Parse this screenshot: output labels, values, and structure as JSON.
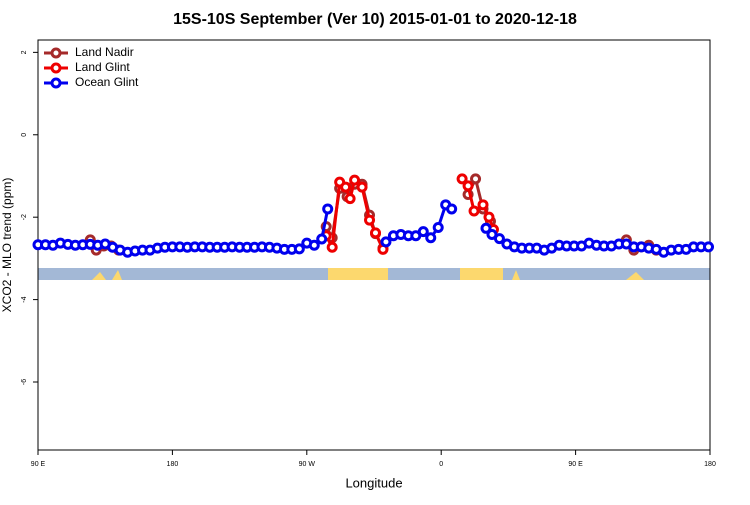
{
  "chart_data": {
    "type": "line",
    "title": "15S-10S September (Ver 10)   2015-01-01 to 2020-12-18",
    "xlabel": "Longitude",
    "ylabel": "XCO2 - MLO trend (ppm)",
    "xlim": [
      -270,
      180
    ],
    "ylim": [
      -7.65,
      2.3
    ],
    "xticks": [
      {
        "value": -270,
        "label": "90 E"
      },
      {
        "value": -180,
        "label": "180"
      },
      {
        "value": -90,
        "label": "90 W"
      },
      0,
      {
        "value": 90,
        "label": "90 E"
      },
      180
    ],
    "yticks": [
      -6,
      -4,
      -2,
      0,
      2
    ],
    "legend": "top-left",
    "series": [
      {
        "name": "Land Nadir",
        "color": "#a52a2a",
        "x": [
          -235,
          -231,
          -226,
          -221,
          -216,
          -150,
          -77,
          -73,
          -68,
          -63,
          -58,
          -53,
          -48,
          -44,
          -39,
          0,
          18,
          23,
          28,
          33,
          80,
          124,
          129,
          134,
          139,
          144
        ],
        "values": [
          -2.55,
          -2.8,
          -2.7,
          -2.7,
          -2.8,
          null,
          -2.23,
          -2.5,
          -1.3,
          -1.5,
          -1.2,
          -1.2,
          -1.95,
          -2.4,
          -2.75,
          null,
          -1.45,
          -1.07,
          -1.8,
          -2.1,
          null,
          -2.55,
          -2.8,
          -2.72,
          -2.68,
          -2.8
        ]
      },
      {
        "name": "Land Glint",
        "color": "#ee0000",
        "x": [
          -77,
          -73,
          -68,
          -64,
          -61,
          -58,
          -53,
          -48,
          -44,
          -39,
          0,
          14,
          18,
          22,
          28,
          32,
          35
        ],
        "values": [
          -2.45,
          -2.73,
          -1.15,
          -1.27,
          -1.55,
          -1.1,
          -1.27,
          -2.07,
          -2.38,
          -2.78,
          null,
          -1.07,
          -1.24,
          -1.85,
          -1.7,
          -2.0,
          -2.3
        ]
      },
      {
        "name": "Ocean Glint",
        "color": "#0000ee",
        "x": [
          -270,
          -265,
          -260,
          -255,
          -250,
          -245,
          -240,
          -235,
          -230,
          -225,
          -220,
          -215,
          -210,
          -205,
          -200,
          -195,
          -190,
          -185,
          -180,
          -175,
          -170,
          -165,
          -160,
          -155,
          -150,
          -145,
          -140,
          -135,
          -130,
          -125,
          -120,
          -115,
          -110,
          -105,
          -100,
          -95,
          -90,
          -85,
          -80,
          -76,
          -60,
          -37,
          -32,
          -27,
          -22,
          -17,
          -12,
          -7,
          -2,
          3,
          7,
          18,
          30,
          34,
          39,
          44,
          49,
          54,
          59,
          64,
          69,
          74,
          79,
          84,
          89,
          94,
          99,
          104,
          109,
          114,
          119,
          124,
          129,
          134,
          139,
          144,
          149,
          154,
          159,
          164,
          169,
          174,
          179
        ],
        "values": [
          -2.67,
          -2.67,
          -2.68,
          -2.63,
          -2.66,
          -2.68,
          -2.67,
          -2.66,
          -2.68,
          -2.65,
          -2.73,
          -2.8,
          -2.85,
          -2.82,
          -2.8,
          -2.8,
          -2.75,
          -2.73,
          -2.72,
          -2.72,
          -2.73,
          -2.72,
          -2.72,
          -2.73,
          -2.73,
          -2.73,
          -2.72,
          -2.73,
          -2.73,
          -2.73,
          -2.72,
          -2.73,
          -2.75,
          -2.78,
          -2.78,
          -2.77,
          -2.63,
          -2.68,
          -2.53,
          -1.8,
          null,
          -2.6,
          -2.45,
          -2.42,
          -2.45,
          -2.45,
          -2.35,
          -2.5,
          -2.25,
          -1.7,
          -1.8,
          null,
          -2.27,
          -2.42,
          -2.52,
          -2.65,
          -2.72,
          -2.75,
          -2.75,
          -2.75,
          -2.8,
          -2.75,
          -2.68,
          -2.7,
          -2.7,
          -2.7,
          -2.63,
          -2.68,
          -2.7,
          -2.7,
          -2.65,
          -2.65,
          -2.72,
          -2.72,
          -2.75,
          -2.78,
          -2.85,
          -2.8,
          -2.78,
          -2.78,
          -2.72,
          -2.72,
          -2.72
        ]
      }
    ]
  }
}
